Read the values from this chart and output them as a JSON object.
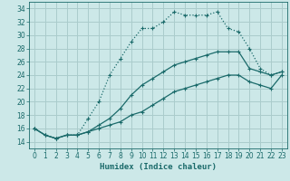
{
  "xlabel": "Humidex (Indice chaleur)",
  "bg_color": "#cce8e8",
  "grid_color": "#aacccc",
  "line_color": "#1a6a6a",
  "xlim": [
    -0.5,
    23.5
  ],
  "ylim": [
    13.0,
    35.0
  ],
  "xticks": [
    0,
    1,
    2,
    3,
    4,
    5,
    6,
    7,
    8,
    9,
    10,
    11,
    12,
    13,
    14,
    15,
    16,
    17,
    18,
    19,
    20,
    21,
    22,
    23
  ],
  "yticks": [
    14,
    16,
    18,
    20,
    22,
    24,
    26,
    28,
    30,
    32,
    34
  ],
  "line1_x": [
    0,
    1,
    2,
    3,
    4,
    5,
    6,
    7,
    8,
    9,
    10,
    11,
    12,
    13,
    14,
    15,
    16,
    17,
    18,
    19,
    20,
    21,
    22,
    23
  ],
  "line1_y": [
    16,
    15,
    14.5,
    15,
    15,
    17.5,
    20,
    24,
    26.5,
    29,
    31,
    31,
    32,
    33.5,
    33,
    33,
    33,
    33.5,
    31,
    30.5,
    28,
    25,
    24,
    24.5
  ],
  "line2_full_x": [
    0,
    1,
    2,
    3,
    4,
    5,
    6,
    7,
    8,
    9,
    10,
    11,
    12,
    13,
    14,
    15,
    16,
    17,
    18,
    19,
    20,
    21,
    22,
    23
  ],
  "line2_full_y": [
    16,
    15,
    14.5,
    15,
    15,
    15.5,
    16.5,
    17.5,
    19,
    21,
    22.5,
    23.5,
    24.5,
    25.5,
    26,
    26.5,
    27,
    27.5,
    27.5,
    27.5,
    25,
    24.5,
    24,
    24.5
  ],
  "line3_full_x": [
    0,
    1,
    2,
    3,
    4,
    5,
    6,
    7,
    8,
    9,
    10,
    11,
    12,
    13,
    14,
    15,
    16,
    17,
    18,
    19,
    20,
    21,
    22,
    23
  ],
  "line3_full_y": [
    16,
    15,
    14.5,
    15,
    15,
    15.5,
    16,
    16.5,
    17,
    18,
    18.5,
    19.5,
    20.5,
    21.5,
    22,
    22.5,
    23,
    23.5,
    24,
    24,
    23,
    22.5,
    22,
    24
  ]
}
